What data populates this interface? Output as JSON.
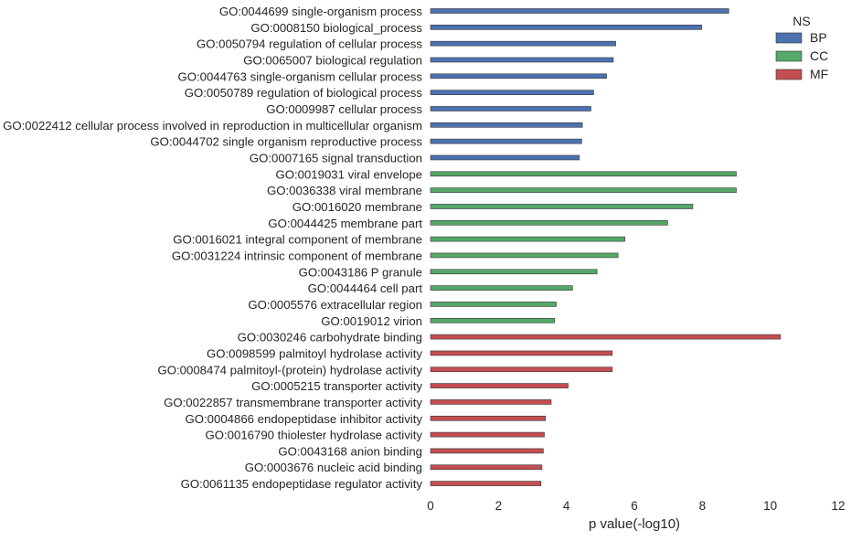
{
  "chart_data": {
    "type": "bar",
    "orientation": "horizontal",
    "xlabel": "p value(-log10)",
    "ylabel": "",
    "title": "",
    "xlim": [
      0,
      12
    ],
    "xticks": [
      0,
      2,
      4,
      6,
      8,
      10,
      12
    ],
    "grid": false,
    "legend": {
      "title": "NS",
      "placement": "top-right",
      "entries": [
        {
          "name": "BP",
          "color": "#4c72b0"
        },
        {
          "name": "CC",
          "color": "#55a868"
        },
        {
          "name": "MF",
          "color": "#c44e52"
        }
      ]
    },
    "bars": [
      {
        "label": "GO:0044699 single-organism process",
        "value": 8.78,
        "group": "BP"
      },
      {
        "label": "GO:0008150 biological_process",
        "value": 7.98,
        "group": "BP"
      },
      {
        "label": "GO:0050794 regulation of cellular process",
        "value": 5.45,
        "group": "BP"
      },
      {
        "label": "GO:0065007 biological regulation",
        "value": 5.38,
        "group": "BP"
      },
      {
        "label": "GO:0044763 single-organism cellular process",
        "value": 5.18,
        "group": "BP"
      },
      {
        "label": "GO:0050789 regulation of biological process",
        "value": 4.8,
        "group": "BP"
      },
      {
        "label": "GO:0009987 cellular process",
        "value": 4.72,
        "group": "BP"
      },
      {
        "label": "GO:0022412 cellular process involved in reproduction in multicellular organism",
        "value": 4.47,
        "group": "BP"
      },
      {
        "label": "GO:0044702 single organism reproductive process",
        "value": 4.45,
        "group": "BP"
      },
      {
        "label": "GO:0007165 signal transduction",
        "value": 4.38,
        "group": "BP"
      },
      {
        "label": "GO:0019031 viral envelope",
        "value": 9.0,
        "group": "CC"
      },
      {
        "label": "GO:0036338 viral membrane",
        "value": 9.0,
        "group": "CC"
      },
      {
        "label": "GO:0016020 membrane",
        "value": 7.72,
        "group": "CC"
      },
      {
        "label": "GO:0044425 membrane part",
        "value": 6.98,
        "group": "CC"
      },
      {
        "label": "GO:0016021 integral component of membrane",
        "value": 5.72,
        "group": "CC"
      },
      {
        "label": "GO:0031224 intrinsic component of membrane",
        "value": 5.52,
        "group": "CC"
      },
      {
        "label": "GO:0043186 P granule",
        "value": 4.9,
        "group": "CC"
      },
      {
        "label": "GO:0044464 cell part",
        "value": 4.18,
        "group": "CC"
      },
      {
        "label": "GO:0005576 extracellular region",
        "value": 3.7,
        "group": "CC"
      },
      {
        "label": "GO:0019012 virion",
        "value": 3.65,
        "group": "CC"
      },
      {
        "label": "GO:0030246 carbohydrate binding",
        "value": 10.3,
        "group": "MF"
      },
      {
        "label": "GO:0098599 palmitoyl hydrolase activity",
        "value": 5.35,
        "group": "MF"
      },
      {
        "label": "GO:0008474 palmitoyl-(protein) hydrolase activity",
        "value": 5.35,
        "group": "MF"
      },
      {
        "label": "GO:0005215 transporter activity",
        "value": 4.05,
        "group": "MF"
      },
      {
        "label": "GO:0022857 transmembrane transporter activity",
        "value": 3.55,
        "group": "MF"
      },
      {
        "label": "GO:0004866 endopeptidase inhibitor activity",
        "value": 3.38,
        "group": "MF"
      },
      {
        "label": "GO:0016790 thiolester hydrolase activity",
        "value": 3.35,
        "group": "MF"
      },
      {
        "label": "GO:0043168 anion binding",
        "value": 3.32,
        "group": "MF"
      },
      {
        "label": "GO:0003676 nucleic acid binding",
        "value": 3.28,
        "group": "MF"
      },
      {
        "label": "GO:0061135 endopeptidase regulator activity",
        "value": 3.25,
        "group": "MF"
      }
    ]
  }
}
